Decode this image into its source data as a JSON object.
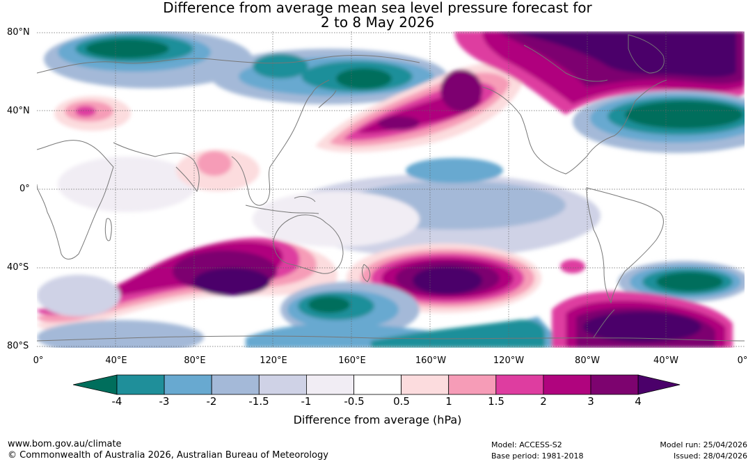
{
  "title": {
    "line1": "Difference from average mean sea level pressure forecast for",
    "line2": "2 to 8 May 2026"
  },
  "map": {
    "lat_labels": [
      "80°N",
      "40°N",
      "0°",
      "40°S",
      "80°S"
    ],
    "lon_labels": [
      "0°",
      "40°E",
      "80°E",
      "120°E",
      "160°E",
      "160°W",
      "120°W",
      "80°W",
      "40°W",
      "0°"
    ]
  },
  "colorbar": {
    "tick_labels": [
      "-4",
      "-3",
      "-2",
      "-1.5",
      "-1",
      "-0.5",
      "0.5",
      "1",
      "1.5",
      "2",
      "3",
      "4"
    ],
    "colors": [
      "#006e5c",
      "#1f8f9a",
      "#68a9d0",
      "#a4b9d8",
      "#cfd2e6",
      "#f1edf4",
      "#ffffff",
      "#fcdcde",
      "#f69cb7",
      "#de3da0",
      "#b0047e",
      "#7d036f",
      "#4b006a"
    ],
    "title": "Difference from average (hPa)"
  },
  "footer": {
    "website": "www.bom.gov.au/climate",
    "copyright": "© Commonwealth of Australia 2026, Australian Bureau of Meteorology",
    "model": "Model: ACCESS-S2",
    "base_period": "Base period: 1981-2018",
    "model_run": "Model run: 25/04/2026",
    "issued": "Issued: 28/04/2026"
  }
}
